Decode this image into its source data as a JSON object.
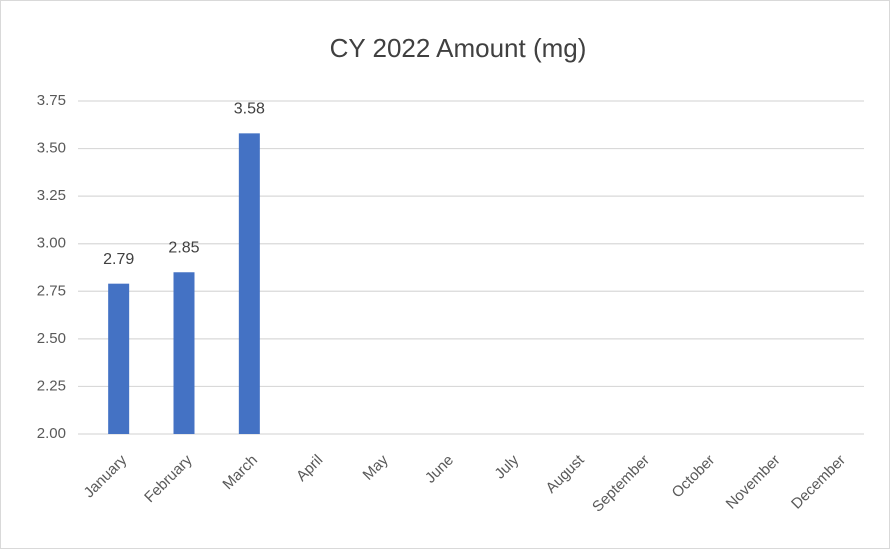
{
  "chart_data": {
    "type": "bar",
    "title": "CY 2022 Amount (mg)",
    "categories": [
      "January",
      "February",
      "March",
      "April",
      "May",
      "June",
      "July",
      "August",
      "September",
      "October",
      "November",
      "December"
    ],
    "values": [
      2.79,
      2.85,
      3.58,
      null,
      null,
      null,
      null,
      null,
      null,
      null,
      null,
      null
    ],
    "color": "#4472c4",
    "ylim": [
      2,
      3.75
    ],
    "yticks": [
      {
        "value": 2,
        "label": "2.00"
      },
      {
        "value": 2.25,
        "label": "2.25"
      },
      {
        "value": 2.5,
        "label": "2.50"
      },
      {
        "value": 2.75,
        "label": "2.75"
      },
      {
        "value": 3,
        "label": "3.00"
      },
      {
        "value": 3.25,
        "label": "3.25"
      },
      {
        "value": 3.5,
        "label": "3.50"
      },
      {
        "value": 3.75,
        "label": "3.75"
      }
    ],
    "grid": true
  }
}
